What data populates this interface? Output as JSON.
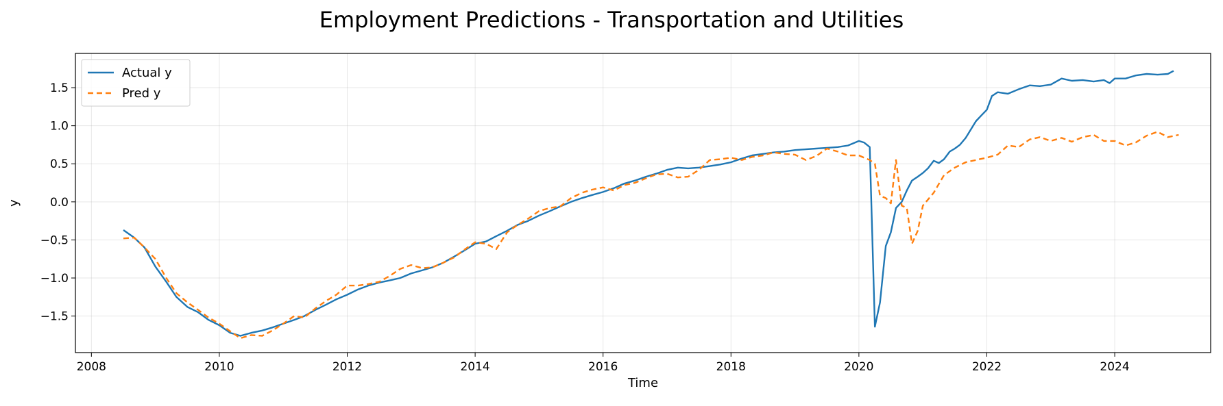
{
  "chart_data": {
    "type": "line",
    "title": "Employment Predictions - Transportation and Utilities",
    "xlabel": "Time",
    "ylabel": "y",
    "xlim": [
      2007.75,
      2025.5
    ],
    "ylim": [
      -1.98,
      1.95
    ],
    "x_ticks": [
      2008,
      2010,
      2012,
      2014,
      2016,
      2018,
      2020,
      2022,
      2024
    ],
    "y_ticks": [
      -1.5,
      -1.0,
      -0.5,
      0.0,
      0.5,
      1.0,
      1.5
    ],
    "y_tick_labels": [
      "−1.5",
      "−1.0",
      "−0.5",
      "0.0",
      "0.5",
      "1.0",
      "1.5"
    ],
    "grid": true,
    "legend_position": "upper-left",
    "series": [
      {
        "name": "Actual y",
        "color": "#1f77b4",
        "style": "solid",
        "points": [
          [
            2008.5,
            -0.37
          ],
          [
            2008.67,
            -0.47
          ],
          [
            2008.83,
            -0.6
          ],
          [
            2009.0,
            -0.85
          ],
          [
            2009.17,
            -1.05
          ],
          [
            2009.33,
            -1.25
          ],
          [
            2009.5,
            -1.38
          ],
          [
            2009.67,
            -1.45
          ],
          [
            2009.83,
            -1.55
          ],
          [
            2010.0,
            -1.62
          ],
          [
            2010.17,
            -1.72
          ],
          [
            2010.33,
            -1.76
          ],
          [
            2010.5,
            -1.72
          ],
          [
            2010.67,
            -1.69
          ],
          [
            2010.83,
            -1.65
          ],
          [
            2011.0,
            -1.6
          ],
          [
            2011.17,
            -1.55
          ],
          [
            2011.33,
            -1.5
          ],
          [
            2011.5,
            -1.42
          ],
          [
            2011.67,
            -1.35
          ],
          [
            2011.83,
            -1.28
          ],
          [
            2012.0,
            -1.22
          ],
          [
            2012.17,
            -1.15
          ],
          [
            2012.33,
            -1.1
          ],
          [
            2012.5,
            -1.06
          ],
          [
            2012.67,
            -1.03
          ],
          [
            2012.83,
            -1.0
          ],
          [
            2013.0,
            -0.94
          ],
          [
            2013.17,
            -0.9
          ],
          [
            2013.33,
            -0.86
          ],
          [
            2013.5,
            -0.8
          ],
          [
            2013.67,
            -0.72
          ],
          [
            2013.83,
            -0.64
          ],
          [
            2014.0,
            -0.55
          ],
          [
            2014.17,
            -0.52
          ],
          [
            2014.33,
            -0.45
          ],
          [
            2014.5,
            -0.38
          ],
          [
            2014.67,
            -0.3
          ],
          [
            2014.83,
            -0.25
          ],
          [
            2015.0,
            -0.18
          ],
          [
            2015.17,
            -0.12
          ],
          [
            2015.33,
            -0.06
          ],
          [
            2015.5,
            0.0
          ],
          [
            2015.67,
            0.05
          ],
          [
            2015.83,
            0.09
          ],
          [
            2016.0,
            0.13
          ],
          [
            2016.17,
            0.18
          ],
          [
            2016.33,
            0.24
          ],
          [
            2016.5,
            0.28
          ],
          [
            2016.67,
            0.33
          ],
          [
            2016.83,
            0.37
          ],
          [
            2017.0,
            0.42
          ],
          [
            2017.17,
            0.45
          ],
          [
            2017.33,
            0.44
          ],
          [
            2017.5,
            0.45
          ],
          [
            2017.67,
            0.47
          ],
          [
            2017.83,
            0.49
          ],
          [
            2018.0,
            0.52
          ],
          [
            2018.17,
            0.57
          ],
          [
            2018.33,
            0.61
          ],
          [
            2018.5,
            0.63
          ],
          [
            2018.67,
            0.65
          ],
          [
            2018.83,
            0.66
          ],
          [
            2019.0,
            0.68
          ],
          [
            2019.17,
            0.69
          ],
          [
            2019.33,
            0.7
          ],
          [
            2019.5,
            0.71
          ],
          [
            2019.67,
            0.72
          ],
          [
            2019.83,
            0.74
          ],
          [
            2020.0,
            0.8
          ],
          [
            2020.08,
            0.78
          ],
          [
            2020.17,
            0.72
          ],
          [
            2020.25,
            -1.64
          ],
          [
            2020.33,
            -1.32
          ],
          [
            2020.42,
            -0.58
          ],
          [
            2020.5,
            -0.4
          ],
          [
            2020.58,
            -0.08
          ],
          [
            2020.67,
            0.0
          ],
          [
            2020.75,
            0.15
          ],
          [
            2020.83,
            0.28
          ],
          [
            2020.92,
            0.33
          ],
          [
            2021.0,
            0.38
          ],
          [
            2021.08,
            0.44
          ],
          [
            2021.17,
            0.54
          ],
          [
            2021.25,
            0.51
          ],
          [
            2021.33,
            0.56
          ],
          [
            2021.42,
            0.66
          ],
          [
            2021.5,
            0.7
          ],
          [
            2021.58,
            0.75
          ],
          [
            2021.67,
            0.84
          ],
          [
            2021.75,
            0.95
          ],
          [
            2021.83,
            1.06
          ],
          [
            2021.92,
            1.14
          ],
          [
            2022.0,
            1.21
          ],
          [
            2022.08,
            1.39
          ],
          [
            2022.17,
            1.44
          ],
          [
            2022.33,
            1.42
          ],
          [
            2022.5,
            1.48
          ],
          [
            2022.67,
            1.53
          ],
          [
            2022.83,
            1.52
          ],
          [
            2023.0,
            1.54
          ],
          [
            2023.17,
            1.62
          ],
          [
            2023.33,
            1.59
          ],
          [
            2023.5,
            1.6
          ],
          [
            2023.67,
            1.58
          ],
          [
            2023.83,
            1.6
          ],
          [
            2023.92,
            1.56
          ],
          [
            2024.0,
            1.62
          ],
          [
            2024.17,
            1.62
          ],
          [
            2024.33,
            1.66
          ],
          [
            2024.5,
            1.68
          ],
          [
            2024.67,
            1.67
          ],
          [
            2024.83,
            1.68
          ],
          [
            2024.92,
            1.72
          ]
        ]
      },
      {
        "name": "Pred y",
        "color": "#ff7f0e",
        "style": "dashed",
        "points": [
          [
            2008.5,
            -0.48
          ],
          [
            2008.67,
            -0.47
          ],
          [
            2008.83,
            -0.6
          ],
          [
            2009.0,
            -0.75
          ],
          [
            2009.17,
            -1.0
          ],
          [
            2009.33,
            -1.2
          ],
          [
            2009.5,
            -1.32
          ],
          [
            2009.67,
            -1.42
          ],
          [
            2009.83,
            -1.52
          ],
          [
            2010.0,
            -1.6
          ],
          [
            2010.17,
            -1.7
          ],
          [
            2010.33,
            -1.79
          ],
          [
            2010.5,
            -1.75
          ],
          [
            2010.67,
            -1.76
          ],
          [
            2010.83,
            -1.69
          ],
          [
            2011.0,
            -1.6
          ],
          [
            2011.17,
            -1.5
          ],
          [
            2011.33,
            -1.52
          ],
          [
            2011.5,
            -1.4
          ],
          [
            2011.67,
            -1.3
          ],
          [
            2011.83,
            -1.22
          ],
          [
            2012.0,
            -1.1
          ],
          [
            2012.17,
            -1.1
          ],
          [
            2012.33,
            -1.08
          ],
          [
            2012.5,
            -1.05
          ],
          [
            2012.67,
            -0.97
          ],
          [
            2012.83,
            -0.88
          ],
          [
            2013.0,
            -0.83
          ],
          [
            2013.17,
            -0.87
          ],
          [
            2013.33,
            -0.86
          ],
          [
            2013.5,
            -0.8
          ],
          [
            2013.67,
            -0.73
          ],
          [
            2013.83,
            -0.63
          ],
          [
            2014.0,
            -0.53
          ],
          [
            2014.17,
            -0.55
          ],
          [
            2014.33,
            -0.62
          ],
          [
            2014.5,
            -0.4
          ],
          [
            2014.67,
            -0.3
          ],
          [
            2014.83,
            -0.22
          ],
          [
            2015.0,
            -0.12
          ],
          [
            2015.17,
            -0.08
          ],
          [
            2015.33,
            -0.06
          ],
          [
            2015.5,
            0.05
          ],
          [
            2015.67,
            0.12
          ],
          [
            2015.83,
            0.16
          ],
          [
            2016.0,
            0.19
          ],
          [
            2016.17,
            0.15
          ],
          [
            2016.33,
            0.22
          ],
          [
            2016.5,
            0.25
          ],
          [
            2016.67,
            0.31
          ],
          [
            2016.83,
            0.36
          ],
          [
            2017.0,
            0.37
          ],
          [
            2017.17,
            0.32
          ],
          [
            2017.33,
            0.33
          ],
          [
            2017.5,
            0.42
          ],
          [
            2017.67,
            0.55
          ],
          [
            2017.83,
            0.56
          ],
          [
            2018.0,
            0.58
          ],
          [
            2018.17,
            0.55
          ],
          [
            2018.33,
            0.59
          ],
          [
            2018.5,
            0.61
          ],
          [
            2018.67,
            0.65
          ],
          [
            2018.83,
            0.63
          ],
          [
            2019.0,
            0.62
          ],
          [
            2019.17,
            0.55
          ],
          [
            2019.33,
            0.6
          ],
          [
            2019.5,
            0.7
          ],
          [
            2019.67,
            0.66
          ],
          [
            2019.83,
            0.61
          ],
          [
            2020.0,
            0.61
          ],
          [
            2020.08,
            0.58
          ],
          [
            2020.17,
            0.55
          ],
          [
            2020.25,
            0.5
          ],
          [
            2020.33,
            0.08
          ],
          [
            2020.42,
            0.05
          ],
          [
            2020.5,
            -0.02
          ],
          [
            2020.58,
            0.55
          ],
          [
            2020.67,
            -0.05
          ],
          [
            2020.75,
            -0.08
          ],
          [
            2020.83,
            -0.55
          ],
          [
            2020.92,
            -0.38
          ],
          [
            2021.0,
            -0.05
          ],
          [
            2021.17,
            0.12
          ],
          [
            2021.33,
            0.35
          ],
          [
            2021.5,
            0.45
          ],
          [
            2021.67,
            0.52
          ],
          [
            2021.83,
            0.55
          ],
          [
            2022.0,
            0.58
          ],
          [
            2022.17,
            0.62
          ],
          [
            2022.33,
            0.74
          ],
          [
            2022.5,
            0.72
          ],
          [
            2022.67,
            0.82
          ],
          [
            2022.83,
            0.85
          ],
          [
            2023.0,
            0.8
          ],
          [
            2023.17,
            0.84
          ],
          [
            2023.33,
            0.79
          ],
          [
            2023.5,
            0.85
          ],
          [
            2023.67,
            0.88
          ],
          [
            2023.83,
            0.8
          ],
          [
            2024.0,
            0.8
          ],
          [
            2024.17,
            0.74
          ],
          [
            2024.33,
            0.78
          ],
          [
            2024.5,
            0.87
          ],
          [
            2024.67,
            0.92
          ],
          [
            2024.83,
            0.85
          ],
          [
            2025.0,
            0.88
          ]
        ]
      }
    ]
  }
}
